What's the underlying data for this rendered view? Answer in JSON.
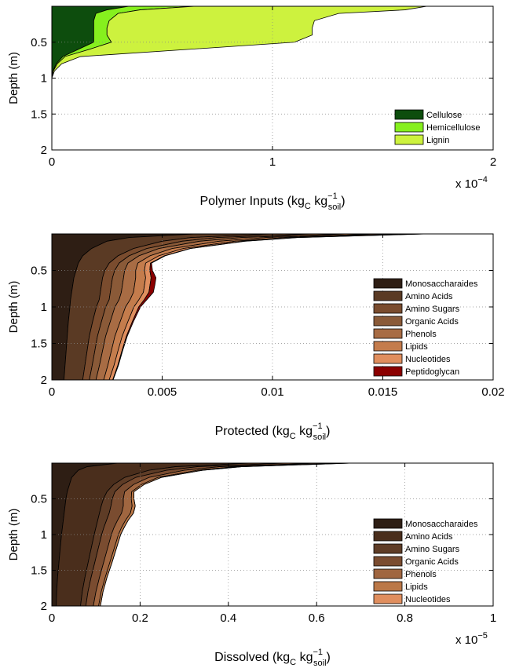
{
  "chart_data": [
    {
      "type": "area",
      "title": "",
      "xlabel": "Polymer Inputs (kg",
      "xlabel_sub": "C",
      "xlabel_mid": " kg",
      "xlabel_sup": "−1",
      "xlabel_sub2": "soil",
      "xlabel_end": ")",
      "ylabel": "Depth (m)",
      "xlim": [
        0,
        2
      ],
      "ylim": [
        0,
        2
      ],
      "y_reversed": true,
      "x_multiplier": "x 10",
      "x_multiplier_exp": "−4",
      "x_ticks": [
        "0",
        "1",
        "2"
      ],
      "x_tick_values": [
        0,
        1,
        2
      ],
      "y_ticks": [
        "0.5",
        "1",
        "1.5",
        "2"
      ],
      "y_tick_values": [
        0.5,
        1,
        1.5,
        2
      ],
      "grid": true,
      "legend_position": "bottom-right",
      "stacked": true,
      "depth": [
        0,
        0.05,
        0.1,
        0.2,
        0.3,
        0.4,
        0.5,
        0.6,
        0.7,
        0.8,
        0.9,
        1.0
      ],
      "series": [
        {
          "name": "Cellulose",
          "color": "#0d4d0d",
          "values": [
            0.35,
            0.25,
            0.2,
            0.19,
            0.19,
            0.19,
            0.19,
            0.12,
            0.05,
            0.02,
            0.005,
            0
          ]
        },
        {
          "name": "Hemicellulose",
          "color": "#86f01e",
          "values": [
            0.3,
            0.15,
            0.1,
            0.07,
            0.06,
            0.06,
            0.08,
            0.05,
            0.01,
            0.005,
            0.002,
            0
          ]
        },
        {
          "name": "Lignin",
          "color": "#cdf23e",
          "values": [
            1.05,
            1.2,
            1.0,
            0.93,
            0.93,
            0.93,
            0.83,
            0.45,
            0.07,
            0.02,
            0.005,
            0
          ]
        }
      ]
    },
    {
      "type": "area",
      "title": "",
      "xlabel": "Protected (kg",
      "xlabel_sub": "C",
      "xlabel_mid": " kg",
      "xlabel_sup": "−1",
      "xlabel_sub2": "soil",
      "xlabel_end": ")",
      "ylabel": "Depth (m)",
      "xlim": [
        0,
        0.02
      ],
      "ylim": [
        0,
        2
      ],
      "y_reversed": true,
      "x_ticks": [
        "0",
        "0.005",
        "0.01",
        "0.015",
        "0.02"
      ],
      "x_tick_values": [
        0,
        0.005,
        0.01,
        0.015,
        0.02
      ],
      "y_ticks": [
        "0.5",
        "1",
        "1.5",
        "2"
      ],
      "y_tick_values": [
        0.5,
        1,
        1.5,
        2
      ],
      "grid": true,
      "legend_position": "right",
      "stacked": true,
      "depth": [
        0,
        0.05,
        0.1,
        0.2,
        0.3,
        0.4,
        0.5,
        0.6,
        0.7,
        0.8,
        0.9,
        1.0,
        1.2,
        1.4,
        1.6,
        1.8,
        2.0
      ],
      "series": [
        {
          "name": "Monosaccharaides",
          "color": "#2e1e14",
          "values": [
            0.0065,
            0.0035,
            0.0025,
            0.0018,
            0.0014,
            0.0012,
            0.0011,
            0.001,
            0.00095,
            0.0009,
            0.00085,
            0.00082,
            0.00075,
            0.0007,
            0.00065,
            0.0006,
            0.00055
          ]
        },
        {
          "name": "Amino Acids",
          "color": "#5a3a24",
          "values": [
            0.0035,
            0.0028,
            0.0025,
            0.0019,
            0.0016,
            0.0014,
            0.0013,
            0.0013,
            0.0013,
            0.0013,
            0.0013,
            0.0012,
            0.0011,
            0.001,
            0.00095,
            0.0009,
            0.00085
          ]
        },
        {
          "name": "Amino Sugars",
          "color": "#7a4c2e",
          "values": [
            0.0018,
            0.0012,
            0.0009,
            0.0006,
            0.0005,
            0.00045,
            0.00045,
            0.00045,
            0.00045,
            0.00045,
            0.00045,
            0.00042,
            0.0004,
            0.00037,
            0.00035,
            0.00033,
            0.0003
          ]
        },
        {
          "name": "Organic Acids",
          "color": "#8a5a38",
          "values": [
            0.0016,
            0.0011,
            0.0008,
            0.00055,
            0.00045,
            0.0004,
            0.00045,
            0.0005,
            0.0005,
            0.0005,
            0.00045,
            0.00042,
            0.0004,
            0.00037,
            0.00035,
            0.00033,
            0.0003
          ]
        },
        {
          "name": "Phenols",
          "color": "#a86c44",
          "values": [
            0.0015,
            0.0011,
            0.0009,
            0.0006,
            0.0005,
            0.00045,
            0.0005,
            0.00055,
            0.00055,
            0.00055,
            0.0005,
            0.00048,
            0.00045,
            0.00042,
            0.0004,
            0.00038,
            0.00035
          ]
        },
        {
          "name": "Lipids",
          "color": "#c47c4c",
          "values": [
            0.0012,
            0.0009,
            0.0007,
            0.0005,
            0.0004,
            0.00035,
            0.0004,
            0.00045,
            0.00045,
            0.00045,
            0.0004,
            0.00038,
            0.00035,
            0.00033,
            0.0003,
            0.00028,
            0.00025
          ]
        },
        {
          "name": "Nucleotides",
          "color": "#e08e5e",
          "values": [
            0.0008,
            0.0005,
            0.0004,
            0.0003,
            0.00025,
            0.00022,
            0.00024,
            0.00025,
            0.00025,
            0.00025,
            0.00024,
            0.00022,
            0.0002,
            0.00019,
            0.00018,
            0.00017,
            0.00016
          ]
        },
        {
          "name": "Peptidoglycan",
          "color": "#8b0000",
          "values": [
            0.0001,
            8e-05,
            6e-05,
            4e-05,
            4e-05,
            5e-05,
            0.00012,
            0.00022,
            0.00022,
            0.0002,
            0.00012,
            8e-05,
            5e-05,
            4e-05,
            3e-05,
            3e-05,
            2e-05
          ]
        }
      ]
    },
    {
      "type": "area",
      "title": "",
      "xlabel": "Dissolved (kg",
      "xlabel_sub": "C",
      "xlabel_mid": " kg",
      "xlabel_sup": "−1",
      "xlabel_sub2": "soil",
      "xlabel_end": ")",
      "ylabel": "Depth (m)",
      "xlim": [
        0,
        1
      ],
      "ylim": [
        0,
        2
      ],
      "y_reversed": true,
      "x_multiplier": "x 10",
      "x_multiplier_exp": "−5",
      "x_ticks": [
        "0",
        "0.2",
        "0.4",
        "0.6",
        "0.8",
        "1"
      ],
      "x_tick_values": [
        0,
        0.2,
        0.4,
        0.6,
        0.8,
        1
      ],
      "y_ticks": [
        "0.5",
        "1",
        "1.5",
        "2"
      ],
      "y_tick_values": [
        0.5,
        1,
        1.5,
        2
      ],
      "grid": true,
      "legend_position": "right",
      "stacked": true,
      "depth": [
        0,
        0.05,
        0.1,
        0.2,
        0.3,
        0.4,
        0.5,
        0.6,
        0.7,
        0.8,
        0.9,
        1.0,
        1.2,
        1.4,
        1.6,
        1.8,
        2.0
      ],
      "series": [
        {
          "name": "Monosaccharaides",
          "color": "#2e1e14",
          "values": [
            0.15,
            0.08,
            0.06,
            0.045,
            0.04,
            0.035,
            0.032,
            0.03,
            0.028,
            0.026,
            0.024,
            0.022,
            0.019,
            0.016,
            0.013,
            0.011,
            0.01
          ]
        },
        {
          "name": "Amino Acids",
          "color": "#4a2e1c",
          "values": [
            0.3,
            0.2,
            0.16,
            0.12,
            0.1,
            0.09,
            0.085,
            0.082,
            0.08,
            0.078,
            0.076,
            0.074,
            0.07,
            0.066,
            0.062,
            0.058,
            0.055
          ]
        },
        {
          "name": "Amino Sugars",
          "color": "#5e3c26",
          "values": [
            0.08,
            0.05,
            0.04,
            0.025,
            0.02,
            0.018,
            0.02,
            0.022,
            0.022,
            0.02,
            0.018,
            0.017,
            0.016,
            0.015,
            0.014,
            0.013,
            0.012
          ]
        },
        {
          "name": "Organic Acids",
          "color": "#7a4c30",
          "values": [
            0.08,
            0.05,
            0.04,
            0.03,
            0.025,
            0.022,
            0.025,
            0.028,
            0.028,
            0.025,
            0.023,
            0.022,
            0.021,
            0.02,
            0.019,
            0.018,
            0.017
          ]
        },
        {
          "name": "Phenols",
          "color": "#a06640",
          "values": [
            0.05,
            0.035,
            0.03,
            0.02,
            0.018,
            0.016,
            0.018,
            0.02,
            0.02,
            0.018,
            0.017,
            0.016,
            0.015,
            0.014,
            0.013,
            0.012,
            0.012
          ]
        },
        {
          "name": "Lipids",
          "color": "#bb7848",
          "values": [
            0.02,
            0.015,
            0.012,
            0.008,
            0.006,
            0.005,
            0.006,
            0.007,
            0.007,
            0.006,
            0.006,
            0.005,
            0.005,
            0.005,
            0.004,
            0.004,
            0.004
          ]
        },
        {
          "name": "Nucleotides",
          "color": "#e08e5e",
          "values": [
            0.0,
            0.0,
            0.0,
            0.0,
            0.0,
            0.0,
            0.0,
            0.0,
            0.0,
            0.0,
            0.0,
            0.0,
            0.0,
            0.0,
            0.0,
            0.0,
            0.0
          ]
        }
      ]
    }
  ]
}
